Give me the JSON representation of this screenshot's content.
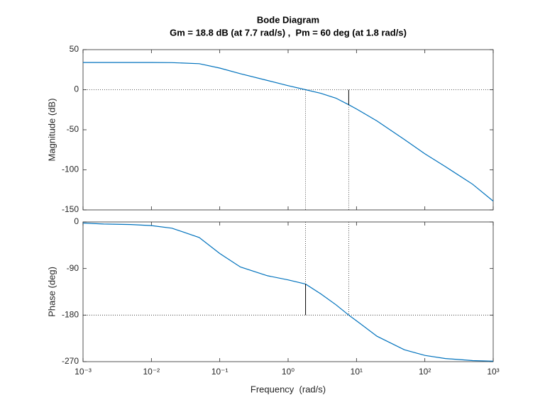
{
  "chart_data": [
    {
      "type": "line",
      "title": "Bode Diagram",
      "subtitle": "Gm = 18.8 dB (at 7.7 rad/s) ,  Pm = 60 deg (at 1.8 rad/s)",
      "ylabel": "Magnitude (dB)",
      "xscale": "log",
      "xlim": [
        0.001,
        1000
      ],
      "x": [
        0.001,
        0.002,
        0.005,
        0.01,
        0.02,
        0.05,
        0.1,
        0.2,
        0.5,
        1,
        1.8,
        3,
        5,
        7.7,
        10,
        20,
        50,
        100,
        200,
        500,
        1000
      ],
      "series": [
        {
          "color": "#0072bd",
          "values": [
            34,
            34,
            34,
            34,
            33.8,
            32.5,
            27,
            20,
            11.5,
            5,
            0,
            -4.5,
            -10.5,
            -18.8,
            -24,
            -39,
            -62,
            -80,
            -96,
            -118,
            -139
          ]
        }
      ],
      "ylim": [
        -150,
        50
      ],
      "yticks": [
        50,
        0,
        -50,
        -100,
        -150
      ],
      "reference": 0,
      "gain_margin": {
        "frequency": 7.7,
        "db": 18.8
      }
    },
    {
      "type": "line",
      "ylabel": "Phase (deg)",
      "xlabel": "Frequency  (rad/s)",
      "xscale": "log",
      "xlim": [
        0.001,
        1000
      ],
      "xticks": [
        {
          "value": 0.001,
          "label": "10⁻³"
        },
        {
          "value": 0.01,
          "label": "10⁻²"
        },
        {
          "value": 0.1,
          "label": "10⁻¹"
        },
        {
          "value": 1,
          "label": "10⁰"
        },
        {
          "value": 10,
          "label": "10¹"
        },
        {
          "value": 100,
          "label": "10²"
        },
        {
          "value": 1000,
          "label": "10³"
        }
      ],
      "x": [
        0.001,
        0.002,
        0.005,
        0.01,
        0.02,
        0.05,
        0.1,
        0.2,
        0.5,
        1,
        1.8,
        3,
        5,
        7.7,
        10,
        20,
        50,
        100,
        200,
        500,
        1000
      ],
      "series": [
        {
          "color": "#0072bd",
          "values": [
            -2,
            -4,
            -5,
            -7,
            -12,
            -30,
            -61,
            -87,
            -104,
            -112,
            -120,
            -139,
            -160,
            -180,
            -191,
            -221,
            -247,
            -258,
            -264,
            -268,
            -269
          ]
        }
      ],
      "ylim": [
        -270,
        0
      ],
      "yticks": [
        0,
        -90,
        -180,
        -270
      ],
      "reference": -180,
      "phase_margin": {
        "frequency": 1.8,
        "deg": 60
      }
    }
  ]
}
